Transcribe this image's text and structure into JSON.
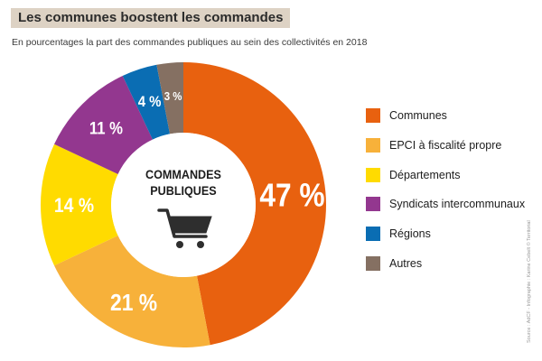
{
  "header": {
    "title": "Les communes boostent les commandes",
    "subtitle": "En pourcentages la part des commandes publiques au sein des collectivités en 2018"
  },
  "center": {
    "line1": "COMMANDES",
    "line2": "PUBLIQUES",
    "icon": "shopping-cart-icon"
  },
  "source": "Source : AdCF - Infographie : Karine Cebelt © Territorial",
  "chart_data": {
    "type": "pie",
    "style": "donut",
    "title": "Les communes boostent les commandes",
    "subtitle": "En pourcentages la part des commandes publiques au sein des collectivités en 2018",
    "legend_position": "right",
    "slices": [
      {
        "name": "Communes",
        "value": 47,
        "label": "47 %",
        "color": "#e8610f"
      },
      {
        "name": "EPCI à fiscalité propre",
        "value": 21,
        "label": "21 %",
        "color": "#f7b13a"
      },
      {
        "name": "Départements",
        "value": 14,
        "label": "14 %",
        "color": "#ffdb00"
      },
      {
        "name": "Syndicats intercommunaux",
        "value": 11,
        "label": "11 %",
        "color": "#93378f"
      },
      {
        "name": "Régions",
        "value": 4,
        "label": "4 %",
        "color": "#0a6db3"
      },
      {
        "name": "Autres",
        "value": 3,
        "label": "3 %",
        "color": "#857062"
      }
    ]
  }
}
